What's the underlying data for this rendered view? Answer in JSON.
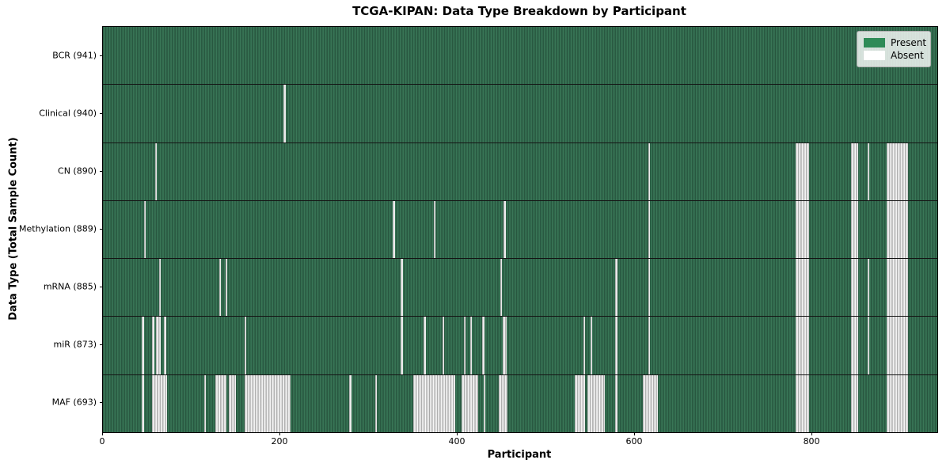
{
  "title": "TCGA-KIPAN: Data Type Breakdown by Participant",
  "x_axis": {
    "label": "Participant"
  },
  "y_axis": {
    "label": "Data Type (Total Sample Count)"
  },
  "legend": {
    "items": [
      {
        "label": "Present",
        "color": "#2e8b57"
      },
      {
        "label": "Absent",
        "color": "#ffffff"
      }
    ]
  },
  "chart_data": {
    "type": "heatmap",
    "title": "TCGA-KIPAN: Data Type Breakdown by Participant",
    "xlabel": "Participant",
    "ylabel": "Data Type (Total Sample Count)",
    "x_range": [
      0,
      941
    ],
    "x_ticks": [
      0,
      200,
      400,
      600,
      800
    ],
    "legend_entries": [
      "Present",
      "Absent"
    ],
    "present_color": "#2e8b57",
    "absent_color": "#ffffff",
    "grid": false,
    "legend_position": "upper right",
    "rows": [
      {
        "data_type": "BCR",
        "sample_count": 941,
        "label": "BCR (941)",
        "absent_ranges": []
      },
      {
        "data_type": "Clinical",
        "sample_count": 940,
        "label": "Clinical (940)",
        "absent_ranges": [
          [
            204,
            206
          ]
        ]
      },
      {
        "data_type": "CN",
        "sample_count": 890,
        "label": "CN (890)",
        "absent_ranges": [
          [
            59,
            61
          ],
          [
            615,
            617
          ],
          [
            781,
            796
          ],
          [
            844,
            852
          ],
          [
            862,
            864
          ],
          [
            884,
            908
          ]
        ]
      },
      {
        "data_type": "Methylation",
        "sample_count": 889,
        "label": "Methylation (889)",
        "absent_ranges": [
          [
            46,
            48
          ],
          [
            327,
            329
          ],
          [
            373,
            375
          ],
          [
            452,
            454
          ],
          [
            615,
            617
          ],
          [
            781,
            796
          ],
          [
            844,
            852
          ],
          [
            884,
            908
          ]
        ]
      },
      {
        "data_type": "mRNA",
        "sample_count": 885,
        "label": "mRNA (885)",
        "absent_ranges": [
          [
            63,
            65
          ],
          [
            131,
            133
          ],
          [
            138,
            140
          ],
          [
            336,
            338
          ],
          [
            448,
            450
          ],
          [
            578,
            580
          ],
          [
            615,
            617
          ],
          [
            781,
            796
          ],
          [
            844,
            852
          ],
          [
            862,
            864
          ],
          [
            884,
            908
          ]
        ]
      },
      {
        "data_type": "miR",
        "sample_count": 873,
        "label": "miR (873)",
        "absent_ranges": [
          [
            44,
            46
          ],
          [
            55,
            58
          ],
          [
            60,
            65
          ],
          [
            69,
            71
          ],
          [
            160,
            162
          ],
          [
            336,
            338
          ],
          [
            362,
            364
          ],
          [
            383,
            385
          ],
          [
            407,
            409
          ],
          [
            414,
            416
          ],
          [
            428,
            430
          ],
          [
            451,
            455
          ],
          [
            542,
            544
          ],
          [
            550,
            552
          ],
          [
            578,
            580
          ],
          [
            615,
            617
          ],
          [
            781,
            796
          ],
          [
            844,
            852
          ],
          [
            862,
            864
          ],
          [
            884,
            908
          ]
        ]
      },
      {
        "data_type": "MAF",
        "sample_count": 693,
        "label": "MAF (693)",
        "absent_ranges": [
          [
            44,
            46
          ],
          [
            55,
            72
          ],
          [
            114,
            116
          ],
          [
            127,
            139
          ],
          [
            142,
            150
          ],
          [
            160,
            212
          ],
          [
            278,
            280
          ],
          [
            307,
            309
          ],
          [
            350,
            397
          ],
          [
            404,
            423
          ],
          [
            429,
            431
          ],
          [
            446,
            456
          ],
          [
            532,
            544
          ],
          [
            546,
            566
          ],
          [
            578,
            580
          ],
          [
            609,
            626
          ],
          [
            781,
            796
          ],
          [
            844,
            852
          ],
          [
            884,
            908
          ]
        ]
      }
    ]
  }
}
